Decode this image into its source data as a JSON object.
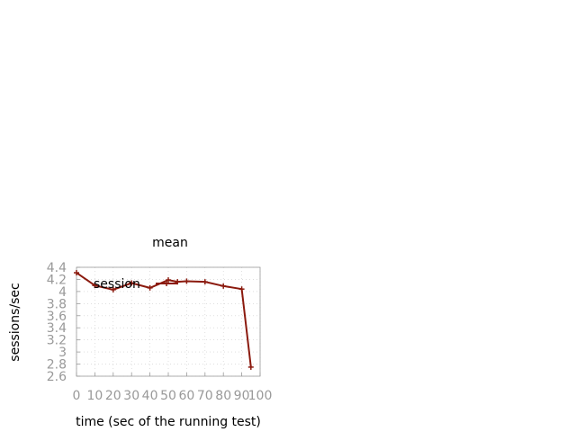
{
  "chart_data": {
    "type": "line",
    "title": "mean",
    "xlabel": "time (sec of the running test)",
    "ylabel": "sessions/sec",
    "xlim": [
      0,
      100
    ],
    "ylim": [
      2.6,
      4.4
    ],
    "x_ticks": [
      0,
      10,
      20,
      30,
      40,
      50,
      60,
      70,
      80,
      90,
      100
    ],
    "y_ticks": [
      2.6,
      2.8,
      3,
      3.2,
      3.4,
      3.6,
      3.8,
      4,
      4.2,
      4.4
    ],
    "x_tick_labels": [
      "0",
      "10",
      "20",
      "30",
      "40",
      "50",
      "60",
      "70",
      "80",
      "90",
      "100"
    ],
    "y_tick_labels": [
      "2.6",
      "2.8",
      "3",
      "3.2",
      "3.4",
      "3.6",
      "3.8",
      "4",
      "4.2",
      "4.4"
    ],
    "grid": true,
    "legend": "top-left",
    "series": [
      {
        "name": "session",
        "color": "#8b1a0e",
        "x": [
          0,
          10,
          20,
          30,
          40,
          50,
          55,
          60,
          70,
          80,
          90,
          95
        ],
        "y": [
          4.31,
          4.1,
          4.03,
          4.14,
          4.06,
          4.19,
          4.16,
          4.17,
          4.16,
          4.09,
          4.04,
          2.75
        ]
      }
    ]
  }
}
